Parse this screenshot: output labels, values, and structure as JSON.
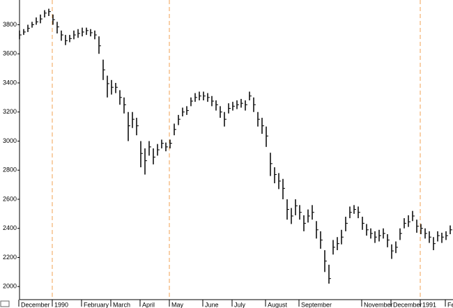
{
  "chart_data": {
    "type": "highlow",
    "categories": [
      "December",
      null,
      null,
      null,
      null,
      null,
      null,
      null,
      "1990",
      null,
      null,
      null,
      null,
      null,
      null,
      "February",
      null,
      null,
      null,
      null,
      null,
      null,
      "March",
      null,
      null,
      null,
      null,
      null,
      null,
      "April",
      null,
      null,
      null,
      null,
      null,
      null,
      "May",
      null,
      null,
      null,
      null,
      null,
      null,
      null,
      "June",
      null,
      null,
      null,
      null,
      null,
      null,
      "July",
      null,
      null,
      null,
      null,
      null,
      null,
      null,
      "August",
      null,
      null,
      null,
      null,
      null,
      null,
      null,
      "September",
      null,
      null,
      null,
      null,
      null,
      null,
      null,
      null,
      null,
      null,
      null,
      null,
      null,
      null,
      "November",
      null,
      null,
      null,
      null,
      null,
      null,
      "December",
      null,
      null,
      null,
      null,
      null,
      null,
      "1991",
      null,
      null,
      null,
      null,
      null,
      "Fe",
      null
    ],
    "high": [
      3760,
      3770,
      3800,
      3820,
      3850,
      3870,
      3900,
      3910,
      3870,
      3820,
      3760,
      3730,
      3730,
      3760,
      3770,
      3780,
      3780,
      3770,
      3760,
      3720,
      3560,
      3450,
      3420,
      3400,
      3350,
      3300,
      3200,
      3200,
      3160,
      3000,
      2950,
      3000,
      2950,
      2980,
      3010,
      2990,
      3010,
      3120,
      3180,
      3230,
      3240,
      3300,
      3330,
      3340,
      3340,
      3330,
      3310,
      3280,
      3240,
      3200,
      3260,
      3270,
      3280,
      3290,
      3280,
      3340,
      3300,
      3200,
      3160,
      3100,
      2920,
      2820,
      2780,
      2740,
      2600,
      2540,
      2600,
      2560,
      2490,
      2530,
      2560,
      2450,
      2380,
      2250,
      2150,
      2320,
      2340,
      2390,
      2480,
      2550,
      2560,
      2550,
      2480,
      2430,
      2400,
      2380,
      2390,
      2400,
      2360,
      2290,
      2310,
      2400,
      2470,
      2490,
      2520,
      2460,
      2430,
      2400,
      2380,
      2340,
      2380,
      2370,
      2380,
      2420
    ],
    "low": [
      3700,
      3730,
      3750,
      3780,
      3800,
      3810,
      3850,
      3860,
      3800,
      3740,
      3690,
      3660,
      3680,
      3700,
      3710,
      3720,
      3730,
      3720,
      3700,
      3600,
      3420,
      3300,
      3320,
      3330,
      3250,
      3190,
      3000,
      3090,
      3040,
      2820,
      2770,
      2900,
      2840,
      2900,
      2950,
      2930,
      2950,
      3040,
      3110,
      3170,
      3180,
      3240,
      3270,
      3280,
      3280,
      3270,
      3240,
      3210,
      3160,
      3100,
      3190,
      3210,
      3220,
      3230,
      3210,
      3280,
      3200,
      3100,
      3050,
      2960,
      2760,
      2710,
      2670,
      2600,
      2460,
      2430,
      2490,
      2460,
      2380,
      2440,
      2460,
      2330,
      2260,
      2100,
      2020,
      2220,
      2250,
      2290,
      2380,
      2470,
      2500,
      2470,
      2390,
      2350,
      2330,
      2300,
      2310,
      2330,
      2270,
      2190,
      2230,
      2320,
      2400,
      2410,
      2450,
      2370,
      2360,
      2330,
      2300,
      2250,
      2310,
      2300,
      2320,
      2360
    ],
    "close": [
      3730,
      3750,
      3775,
      3800,
      3820,
      3840,
      3880,
      3890,
      3835,
      3785,
      3730,
      3690,
      3705,
      3730,
      3740,
      3750,
      3760,
      3745,
      3730,
      3655,
      3490,
      3395,
      3370,
      3370,
      3300,
      3250,
      3105,
      3150,
      3105,
      2915,
      2865,
      2960,
      2890,
      2940,
      2985,
      2960,
      2985,
      3080,
      3150,
      3200,
      3210,
      3275,
      3300,
      3310,
      3310,
      3300,
      3275,
      3250,
      3200,
      3150,
      3225,
      3240,
      3250,
      3260,
      3250,
      3310,
      3250,
      3150,
      3105,
      3035,
      2845,
      2770,
      2725,
      2675,
      2530,
      2485,
      2555,
      2510,
      2435,
      2485,
      2510,
      2390,
      2320,
      2175,
      2055,
      2270,
      2295,
      2340,
      2435,
      2510,
      2530,
      2510,
      2435,
      2390,
      2365,
      2340,
      2350,
      2365,
      2320,
      2245,
      2270,
      2365,
      2435,
      2445,
      2485,
      2415,
      2400,
      2365,
      2340,
      2295,
      2350,
      2340,
      2350,
      2390
    ],
    "color": "#000000",
    "ylim": [
      1910,
      3970
    ],
    "yticks": [
      2000,
      2200,
      2400,
      2600,
      2800,
      3000,
      3200,
      3400,
      3600,
      3800
    ],
    "vlines": [
      8,
      36,
      96
    ],
    "vline_color": "#f0a050"
  }
}
